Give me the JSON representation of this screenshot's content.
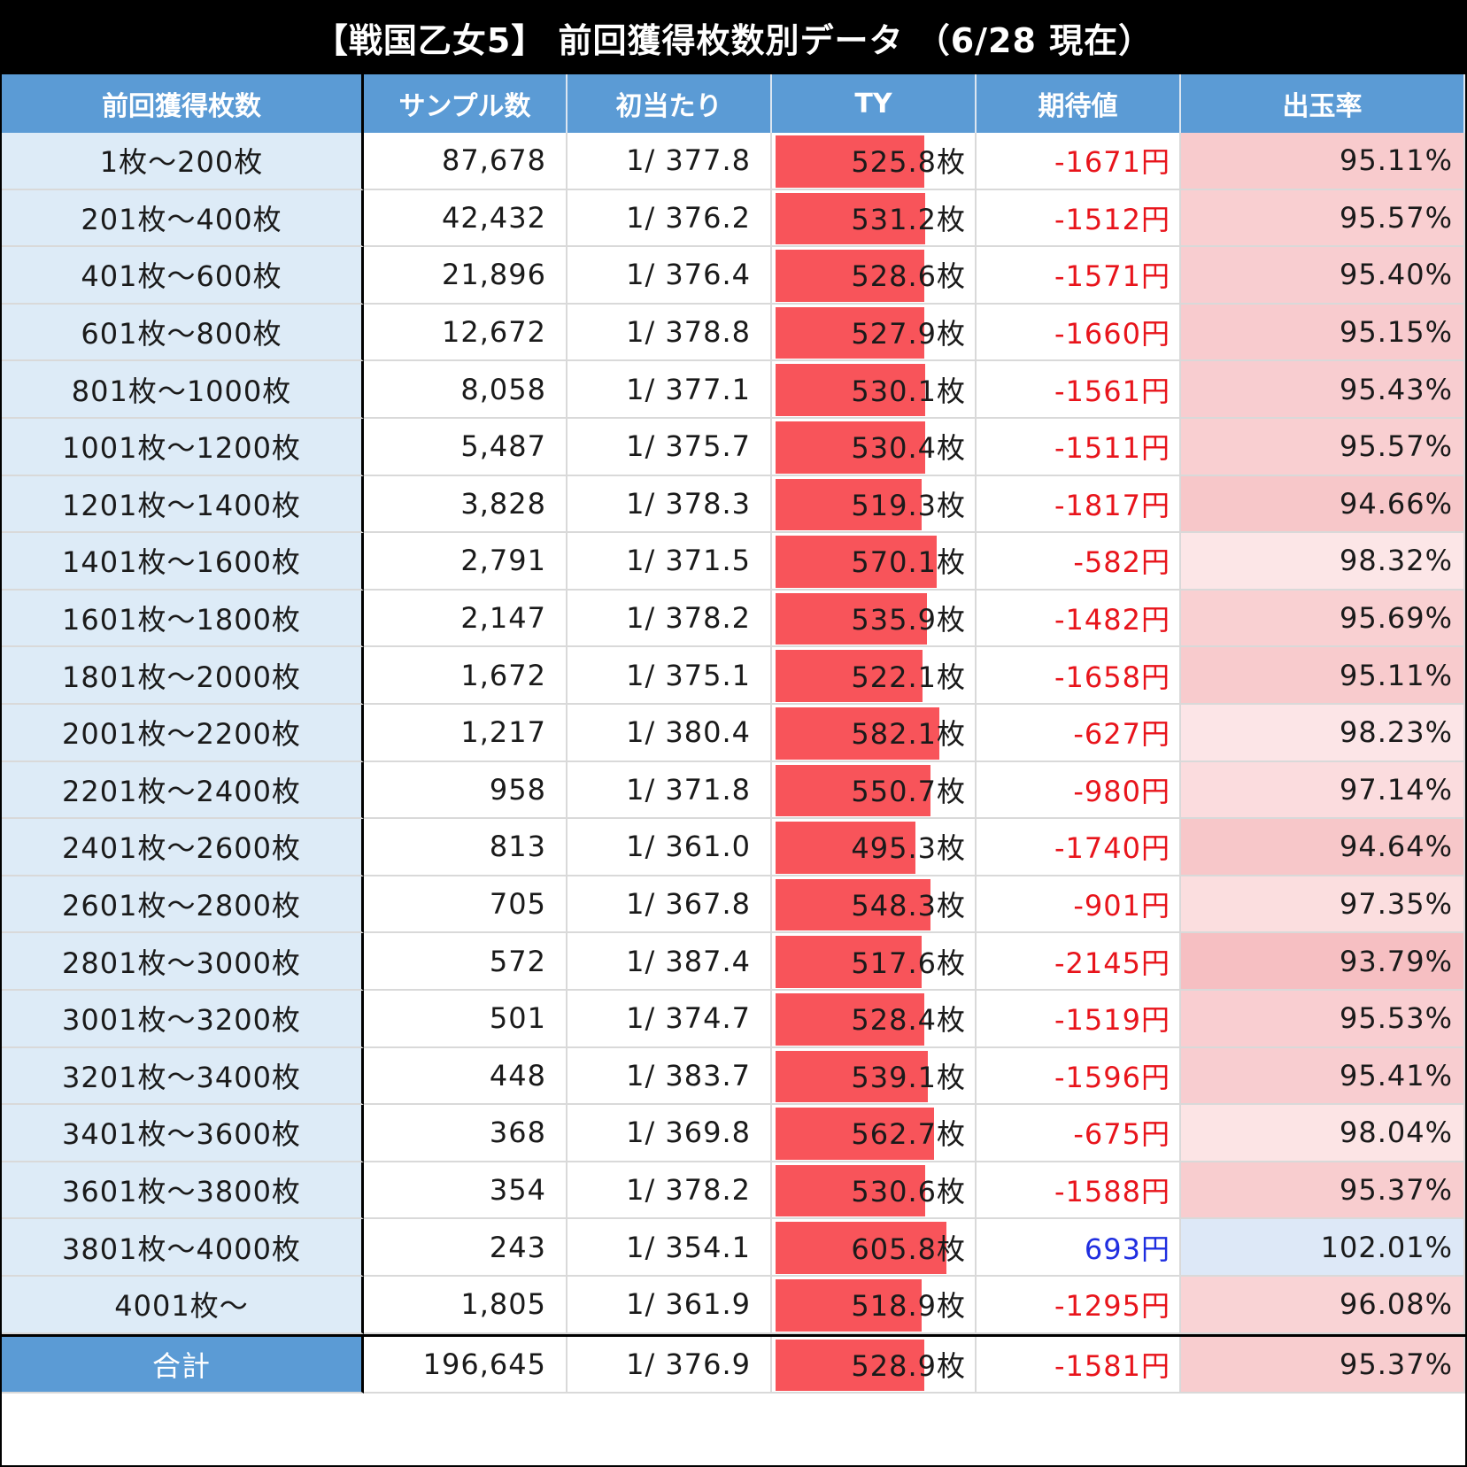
{
  "title": "【戦国乙女5】 前回獲得枚数別データ （6/28 現在）",
  "colors": {
    "header_bg": "#5b9bd5",
    "label_bg": "#ddebf7",
    "bar": "#f8545a",
    "negative": "#e8141b",
    "positive": "#1f2ee0",
    "rate_low": "#f8c6c8",
    "rate_high": "#dde8f7"
  },
  "chart_data": {
    "type": "table",
    "columns": [
      "前回獲得枚数",
      "サンプル数",
      "初当たり",
      "TY",
      "期待値",
      "出玉率"
    ],
    "ty_bar_range": [
      0,
      700
    ],
    "rows": [
      {
        "range": "1枚～200枚",
        "samples": "87,678",
        "first_hit": "1/ 377.8",
        "ty": 525.8,
        "ty_text": "525.8枚",
        "expected": -1671,
        "expected_text": "-1671円",
        "rate": 95.11,
        "rate_text": "95.11%"
      },
      {
        "range": "201枚～400枚",
        "samples": "42,432",
        "first_hit": "1/ 376.2",
        "ty": 531.2,
        "ty_text": "531.2枚",
        "expected": -1512,
        "expected_text": "-1512円",
        "rate": 95.57,
        "rate_text": "95.57%"
      },
      {
        "range": "401枚～600枚",
        "samples": "21,896",
        "first_hit": "1/ 376.4",
        "ty": 528.6,
        "ty_text": "528.6枚",
        "expected": -1571,
        "expected_text": "-1571円",
        "rate": 95.4,
        "rate_text": "95.40%"
      },
      {
        "range": "601枚～800枚",
        "samples": "12,672",
        "first_hit": "1/ 378.8",
        "ty": 527.9,
        "ty_text": "527.9枚",
        "expected": -1660,
        "expected_text": "-1660円",
        "rate": 95.15,
        "rate_text": "95.15%"
      },
      {
        "range": "801枚～1000枚",
        "samples": "8,058",
        "first_hit": "1/ 377.1",
        "ty": 530.1,
        "ty_text": "530.1枚",
        "expected": -1561,
        "expected_text": "-1561円",
        "rate": 95.43,
        "rate_text": "95.43%"
      },
      {
        "range": "1001枚～1200枚",
        "samples": "5,487",
        "first_hit": "1/ 375.7",
        "ty": 530.4,
        "ty_text": "530.4枚",
        "expected": -1511,
        "expected_text": "-1511円",
        "rate": 95.57,
        "rate_text": "95.57%"
      },
      {
        "range": "1201枚～1400枚",
        "samples": "3,828",
        "first_hit": "1/ 378.3",
        "ty": 519.3,
        "ty_text": "519.3枚",
        "expected": -1817,
        "expected_text": "-1817円",
        "rate": 94.66,
        "rate_text": "94.66%"
      },
      {
        "range": "1401枚～1600枚",
        "samples": "2,791",
        "first_hit": "1/ 371.5",
        "ty": 570.1,
        "ty_text": "570.1枚",
        "expected": -582,
        "expected_text": "-582円",
        "rate": 98.32,
        "rate_text": "98.32%"
      },
      {
        "range": "1601枚～1800枚",
        "samples": "2,147",
        "first_hit": "1/ 378.2",
        "ty": 535.9,
        "ty_text": "535.9枚",
        "expected": -1482,
        "expected_text": "-1482円",
        "rate": 95.69,
        "rate_text": "95.69%"
      },
      {
        "range": "1801枚～2000枚",
        "samples": "1,672",
        "first_hit": "1/ 375.1",
        "ty": 522.1,
        "ty_text": "522.1枚",
        "expected": -1658,
        "expected_text": "-1658円",
        "rate": 95.11,
        "rate_text": "95.11%"
      },
      {
        "range": "2001枚～2200枚",
        "samples": "1,217",
        "first_hit": "1/ 380.4",
        "ty": 582.1,
        "ty_text": "582.1枚",
        "expected": -627,
        "expected_text": "-627円",
        "rate": 98.23,
        "rate_text": "98.23%"
      },
      {
        "range": "2201枚～2400枚",
        "samples": "958",
        "first_hit": "1/ 371.8",
        "ty": 550.7,
        "ty_text": "550.7枚",
        "expected": -980,
        "expected_text": "-980円",
        "rate": 97.14,
        "rate_text": "97.14%"
      },
      {
        "range": "2401枚～2600枚",
        "samples": "813",
        "first_hit": "1/ 361.0",
        "ty": 495.3,
        "ty_text": "495.3枚",
        "expected": -1740,
        "expected_text": "-1740円",
        "rate": 94.64,
        "rate_text": "94.64%"
      },
      {
        "range": "2601枚～2800枚",
        "samples": "705",
        "first_hit": "1/ 367.8",
        "ty": 548.3,
        "ty_text": "548.3枚",
        "expected": -901,
        "expected_text": "-901円",
        "rate": 97.35,
        "rate_text": "97.35%"
      },
      {
        "range": "2801枚～3000枚",
        "samples": "572",
        "first_hit": "1/ 387.4",
        "ty": 517.6,
        "ty_text": "517.6枚",
        "expected": -2145,
        "expected_text": "-2145円",
        "rate": 93.79,
        "rate_text": "93.79%"
      },
      {
        "range": "3001枚～3200枚",
        "samples": "501",
        "first_hit": "1/ 374.7",
        "ty": 528.4,
        "ty_text": "528.4枚",
        "expected": -1519,
        "expected_text": "-1519円",
        "rate": 95.53,
        "rate_text": "95.53%"
      },
      {
        "range": "3201枚～3400枚",
        "samples": "448",
        "first_hit": "1/ 383.7",
        "ty": 539.1,
        "ty_text": "539.1枚",
        "expected": -1596,
        "expected_text": "-1596円",
        "rate": 95.41,
        "rate_text": "95.41%"
      },
      {
        "range": "3401枚～3600枚",
        "samples": "368",
        "first_hit": "1/ 369.8",
        "ty": 562.7,
        "ty_text": "562.7枚",
        "expected": -675,
        "expected_text": "-675円",
        "rate": 98.04,
        "rate_text": "98.04%"
      },
      {
        "range": "3601枚～3800枚",
        "samples": "354",
        "first_hit": "1/ 378.2",
        "ty": 530.6,
        "ty_text": "530.6枚",
        "expected": -1588,
        "expected_text": "-1588円",
        "rate": 95.37,
        "rate_text": "95.37%"
      },
      {
        "range": "3801枚～4000枚",
        "samples": "243",
        "first_hit": "1/ 354.1",
        "ty": 605.8,
        "ty_text": "605.8枚",
        "expected": 693,
        "expected_text": "693円",
        "rate": 102.01,
        "rate_text": "102.01%"
      },
      {
        "range": "4001枚～",
        "samples": "1,805",
        "first_hit": "1/ 361.9",
        "ty": 518.9,
        "ty_text": "518.9枚",
        "expected": -1295,
        "expected_text": "-1295円",
        "rate": 96.08,
        "rate_text": "96.08%"
      }
    ],
    "total": {
      "range": "合計",
      "samples": "196,645",
      "first_hit": "1/ 376.9",
      "ty": 528.9,
      "ty_text": "528.9枚",
      "expected": -1581,
      "expected_text": "-1581円",
      "rate": 95.37,
      "rate_text": "95.37%"
    }
  }
}
